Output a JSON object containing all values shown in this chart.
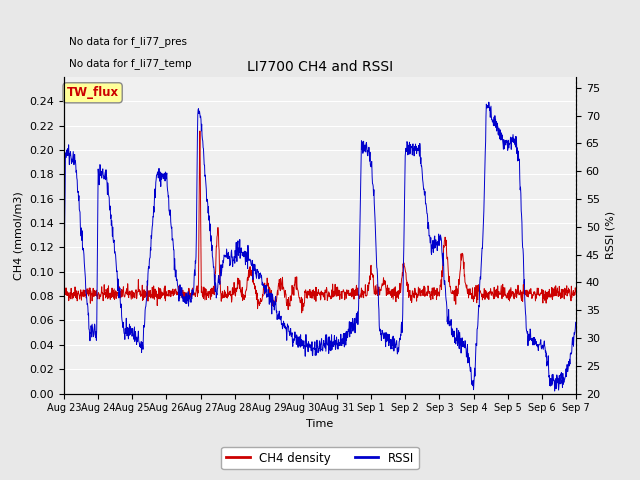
{
  "title": "LI7700 CH4 and RSSI",
  "xlabel": "Time",
  "ylabel_left": "CH4 (mmol/m3)",
  "ylabel_right": "RSSI (%)",
  "annotation1": "No data for f_li77_pres",
  "annotation2": "No data for f_li77_temp",
  "station_label": "TW_flux",
  "xlim": [
    0,
    360
  ],
  "ylim_left": [
    0.0,
    0.26
  ],
  "ylim_right": [
    20,
    77
  ],
  "xtick_labels": [
    "Aug 23",
    "Aug 24",
    "Aug 25",
    "Aug 26",
    "Aug 27",
    "Aug 28",
    "Aug 29",
    "Aug 30",
    "Aug 31",
    "Sep 1",
    "Sep 2",
    "Sep 3",
    "Sep 4",
    "Sep 5",
    "Sep 6",
    "Sep 7"
  ],
  "xtick_positions": [
    0,
    24,
    48,
    72,
    96,
    120,
    144,
    168,
    192,
    216,
    240,
    264,
    288,
    312,
    336,
    360
  ],
  "yticks_left": [
    0.0,
    0.02,
    0.04,
    0.06,
    0.08,
    0.1,
    0.12,
    0.14,
    0.16,
    0.18,
    0.2,
    0.22,
    0.24
  ],
  "yticks_right": [
    20,
    25,
    30,
    35,
    40,
    45,
    50,
    55,
    60,
    65,
    70,
    75
  ],
  "ch4_color": "#cc0000",
  "rssi_color": "#0000cc",
  "bg_color": "#e8e8e8",
  "plot_bg_color": "#f0f0f0",
  "station_box_color": "#ffff99",
  "station_text_color": "#cc0000",
  "legend_ch4_label": "CH4 density",
  "legend_rssi_label": "RSSI",
  "figsize": [
    6.4,
    4.8
  ],
  "dpi": 100
}
